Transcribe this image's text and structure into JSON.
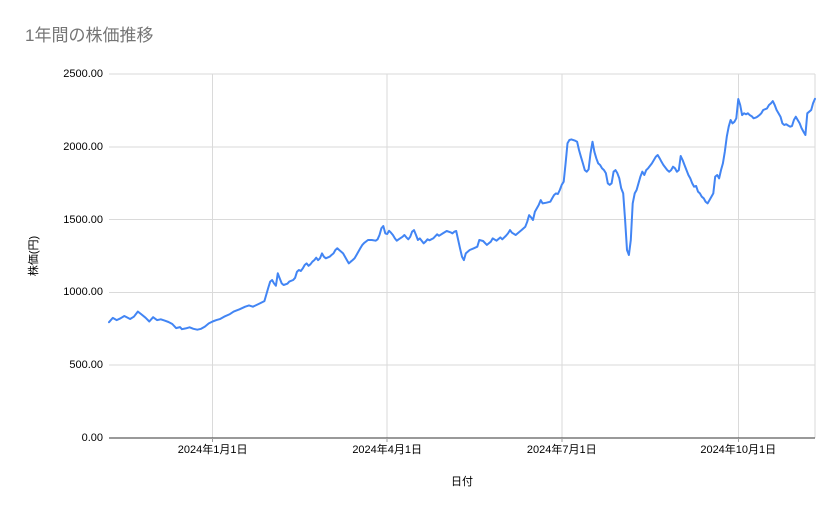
{
  "title": "1年間の株価推移",
  "axes": {
    "y_title": "株価(円)",
    "x_title": "日付"
  },
  "chart_data": {
    "type": "line",
    "title": "1年間の株価推移",
    "xlabel": "日付",
    "ylabel": "株価(円)",
    "ylim": [
      0,
      2500
    ],
    "grid": true,
    "legend": "none",
    "line_color": "#4285f4",
    "grid_color": "#dadada",
    "axis_color": "#333333",
    "y_ticks": [
      {
        "value": 0,
        "label": "0.00"
      },
      {
        "value": 500,
        "label": "500.00"
      },
      {
        "value": 1000,
        "label": "1000.00"
      },
      {
        "value": 1500,
        "label": "1500.00"
      },
      {
        "value": 2000,
        "label": "2000.00"
      },
      {
        "value": 2500,
        "label": "2500.00"
      }
    ],
    "x_range_days": [
      0,
      368
    ],
    "x_ticks": [
      {
        "day": 54,
        "label": "2024年1月1日"
      },
      {
        "day": 145,
        "label": "2024年4月1日"
      },
      {
        "day": 236,
        "label": "2024年7月1日"
      },
      {
        "day": 328,
        "label": "2024年10月1日"
      }
    ],
    "series": [
      {
        "name": "株価(円)",
        "points": [
          [
            0,
            795
          ],
          [
            2,
            825
          ],
          [
            4,
            810
          ],
          [
            6,
            822
          ],
          [
            8,
            838
          ],
          [
            11,
            817
          ],
          [
            13,
            833
          ],
          [
            15,
            868
          ],
          [
            17,
            848
          ],
          [
            19,
            826
          ],
          [
            21,
            800
          ],
          [
            23,
            830
          ],
          [
            25,
            810
          ],
          [
            27,
            815
          ],
          [
            29,
            806
          ],
          [
            31,
            797
          ],
          [
            33,
            783
          ],
          [
            35,
            755
          ],
          [
            37,
            762
          ],
          [
            38,
            747
          ],
          [
            40,
            753
          ],
          [
            42,
            760
          ],
          [
            44,
            750
          ],
          [
            46,
            744
          ],
          [
            48,
            750
          ],
          [
            50,
            765
          ],
          [
            52,
            787
          ],
          [
            54,
            800
          ],
          [
            56,
            810
          ],
          [
            58,
            818
          ],
          [
            60,
            833
          ],
          [
            63,
            851
          ],
          [
            65,
            868
          ],
          [
            68,
            884
          ],
          [
            71,
            902
          ],
          [
            73,
            911
          ],
          [
            75,
            902
          ],
          [
            78,
            920
          ],
          [
            81,
            940
          ],
          [
            83,
            1030
          ],
          [
            84,
            1074
          ],
          [
            85,
            1085
          ],
          [
            86,
            1062
          ],
          [
            87,
            1046
          ],
          [
            88,
            1131
          ],
          [
            89,
            1097
          ],
          [
            90,
            1062
          ],
          [
            91,
            1051
          ],
          [
            93,
            1060
          ],
          [
            94,
            1074
          ],
          [
            96,
            1085
          ],
          [
            97,
            1100
          ],
          [
            98,
            1142
          ],
          [
            99,
            1154
          ],
          [
            100,
            1147
          ],
          [
            101,
            1165
          ],
          [
            102,
            1188
          ],
          [
            103,
            1199
          ],
          [
            104,
            1183
          ],
          [
            105,
            1193
          ],
          [
            106,
            1211
          ],
          [
            107,
            1222
          ],
          [
            108,
            1238
          ],
          [
            109,
            1222
          ],
          [
            110,
            1234
          ],
          [
            111,
            1268
          ],
          [
            112,
            1245
          ],
          [
            113,
            1234
          ],
          [
            115,
            1245
          ],
          [
            116,
            1257
          ],
          [
            117,
            1268
          ],
          [
            118,
            1291
          ],
          [
            119,
            1303
          ],
          [
            120,
            1291
          ],
          [
            121,
            1280
          ],
          [
            122,
            1268
          ],
          [
            123,
            1245
          ],
          [
            124,
            1222
          ],
          [
            125,
            1199
          ],
          [
            126,
            1211
          ],
          [
            127,
            1222
          ],
          [
            128,
            1234
          ],
          [
            129,
            1257
          ],
          [
            130,
            1280
          ],
          [
            131,
            1303
          ],
          [
            132,
            1325
          ],
          [
            133,
            1340
          ],
          [
            135,
            1360
          ],
          [
            137,
            1360
          ],
          [
            139,
            1355
          ],
          [
            140,
            1365
          ],
          [
            141,
            1394
          ],
          [
            142,
            1440
          ],
          [
            143,
            1456
          ],
          [
            144,
            1405
          ],
          [
            145,
            1401
          ],
          [
            146,
            1423
          ],
          [
            147,
            1410
          ],
          [
            148,
            1394
          ],
          [
            149,
            1371
          ],
          [
            150,
            1355
          ],
          [
            151,
            1365
          ],
          [
            153,
            1382
          ],
          [
            154,
            1394
          ],
          [
            155,
            1378
          ],
          [
            156,
            1365
          ],
          [
            157,
            1382
          ],
          [
            158,
            1417
          ],
          [
            159,
            1428
          ],
          [
            160,
            1394
          ],
          [
            161,
            1360
          ],
          [
            162,
            1371
          ],
          [
            164,
            1337
          ],
          [
            165,
            1348
          ],
          [
            166,
            1365
          ],
          [
            167,
            1358
          ],
          [
            169,
            1371
          ],
          [
            171,
            1399
          ],
          [
            172,
            1389
          ],
          [
            174,
            1405
          ],
          [
            176,
            1422
          ],
          [
            178,
            1413
          ],
          [
            179,
            1405
          ],
          [
            180,
            1417
          ],
          [
            181,
            1422
          ],
          [
            183,
            1300
          ],
          [
            184,
            1245
          ],
          [
            185,
            1222
          ],
          [
            186,
            1268
          ],
          [
            188,
            1291
          ],
          [
            190,
            1302
          ],
          [
            192,
            1314
          ],
          [
            193,
            1360
          ],
          [
            195,
            1353
          ],
          [
            197,
            1326
          ],
          [
            199,
            1348
          ],
          [
            200,
            1371
          ],
          [
            202,
            1355
          ],
          [
            204,
            1378
          ],
          [
            205,
            1365
          ],
          [
            207,
            1390
          ],
          [
            208,
            1405
          ],
          [
            209,
            1428
          ],
          [
            210,
            1410
          ],
          [
            212,
            1394
          ],
          [
            213,
            1405
          ],
          [
            215,
            1428
          ],
          [
            217,
            1451
          ],
          [
            218,
            1485
          ],
          [
            219,
            1531
          ],
          [
            220,
            1515
          ],
          [
            221,
            1497
          ],
          [
            222,
            1554
          ],
          [
            224,
            1600
          ],
          [
            225,
            1634
          ],
          [
            226,
            1611
          ],
          [
            228,
            1616
          ],
          [
            230,
            1623
          ],
          [
            231,
            1646
          ],
          [
            232,
            1669
          ],
          [
            233,
            1680
          ],
          [
            234,
            1676
          ],
          [
            235,
            1703
          ],
          [
            236,
            1740
          ],
          [
            237,
            1760
          ],
          [
            238,
            1886
          ],
          [
            239,
            2024
          ],
          [
            240,
            2047
          ],
          [
            241,
            2051
          ],
          [
            243,
            2042
          ],
          [
            244,
            2035
          ],
          [
            245,
            1978
          ],
          [
            246,
            1932
          ],
          [
            247,
            1886
          ],
          [
            248,
            1840
          ],
          [
            249,
            1829
          ],
          [
            250,
            1845
          ],
          [
            251,
            1955
          ],
          [
            252,
            2035
          ],
          [
            253,
            1966
          ],
          [
            254,
            1921
          ],
          [
            255,
            1886
          ],
          [
            256,
            1875
          ],
          [
            257,
            1852
          ],
          [
            258,
            1840
          ],
          [
            259,
            1818
          ],
          [
            260,
            1749
          ],
          [
            261,
            1738
          ],
          [
            262,
            1749
          ],
          [
            263,
            1829
          ],
          [
            264,
            1840
          ],
          [
            265,
            1818
          ],
          [
            266,
            1783
          ],
          [
            267,
            1715
          ],
          [
            268,
            1680
          ],
          [
            269,
            1497
          ],
          [
            270,
            1291
          ],
          [
            271,
            1257
          ],
          [
            272,
            1360
          ],
          [
            273,
            1611
          ],
          [
            274,
            1680
          ],
          [
            275,
            1703
          ],
          [
            276,
            1749
          ],
          [
            277,
            1795
          ],
          [
            278,
            1829
          ],
          [
            279,
            1806
          ],
          [
            280,
            1840
          ],
          [
            281,
            1852
          ],
          [
            283,
            1886
          ],
          [
            285,
            1932
          ],
          [
            286,
            1944
          ],
          [
            287,
            1922
          ],
          [
            288,
            1897
          ],
          [
            289,
            1875
          ],
          [
            291,
            1840
          ],
          [
            292,
            1829
          ],
          [
            293,
            1840
          ],
          [
            294,
            1863
          ],
          [
            295,
            1852
          ],
          [
            296,
            1829
          ],
          [
            297,
            1840
          ],
          [
            298,
            1937
          ],
          [
            299,
            1909
          ],
          [
            300,
            1875
          ],
          [
            301,
            1840
          ],
          [
            302,
            1806
          ],
          [
            303,
            1783
          ],
          [
            304,
            1749
          ],
          [
            305,
            1726
          ],
          [
            306,
            1731
          ],
          [
            307,
            1692
          ],
          [
            308,
            1680
          ],
          [
            309,
            1657
          ],
          [
            310,
            1646
          ],
          [
            311,
            1623
          ],
          [
            312,
            1611
          ],
          [
            313,
            1634
          ],
          [
            314,
            1657
          ],
          [
            315,
            1680
          ],
          [
            316,
            1795
          ],
          [
            317,
            1806
          ],
          [
            318,
            1783
          ],
          [
            319,
            1840
          ],
          [
            320,
            1886
          ],
          [
            321,
            1966
          ],
          [
            322,
            2070
          ],
          [
            323,
            2138
          ],
          [
            324,
            2184
          ],
          [
            325,
            2161
          ],
          [
            326,
            2172
          ],
          [
            327,
            2196
          ],
          [
            328,
            2328
          ],
          [
            329,
            2287
          ],
          [
            330,
            2218
          ],
          [
            331,
            2230
          ],
          [
            332,
            2223
          ],
          [
            333,
            2230
          ],
          [
            334,
            2218
          ],
          [
            335,
            2210
          ],
          [
            336,
            2196
          ],
          [
            337,
            2200
          ],
          [
            338,
            2207
          ],
          [
            339,
            2218
          ],
          [
            340,
            2230
          ],
          [
            341,
            2253
          ],
          [
            343,
            2264
          ],
          [
            344,
            2287
          ],
          [
            345,
            2298
          ],
          [
            346,
            2314
          ],
          [
            347,
            2287
          ],
          [
            348,
            2253
          ],
          [
            349,
            2230
          ],
          [
            350,
            2207
          ],
          [
            351,
            2161
          ],
          [
            352,
            2150
          ],
          [
            353,
            2155
          ],
          [
            354,
            2146
          ],
          [
            355,
            2138
          ],
          [
            356,
            2143
          ],
          [
            357,
            2184
          ],
          [
            358,
            2207
          ],
          [
            359,
            2184
          ],
          [
            360,
            2161
          ],
          [
            361,
            2127
          ],
          [
            362,
            2104
          ],
          [
            363,
            2081
          ],
          [
            364,
            2230
          ],
          [
            365,
            2241
          ],
          [
            366,
            2253
          ],
          [
            367,
            2300
          ],
          [
            368,
            2330
          ]
        ]
      }
    ]
  }
}
